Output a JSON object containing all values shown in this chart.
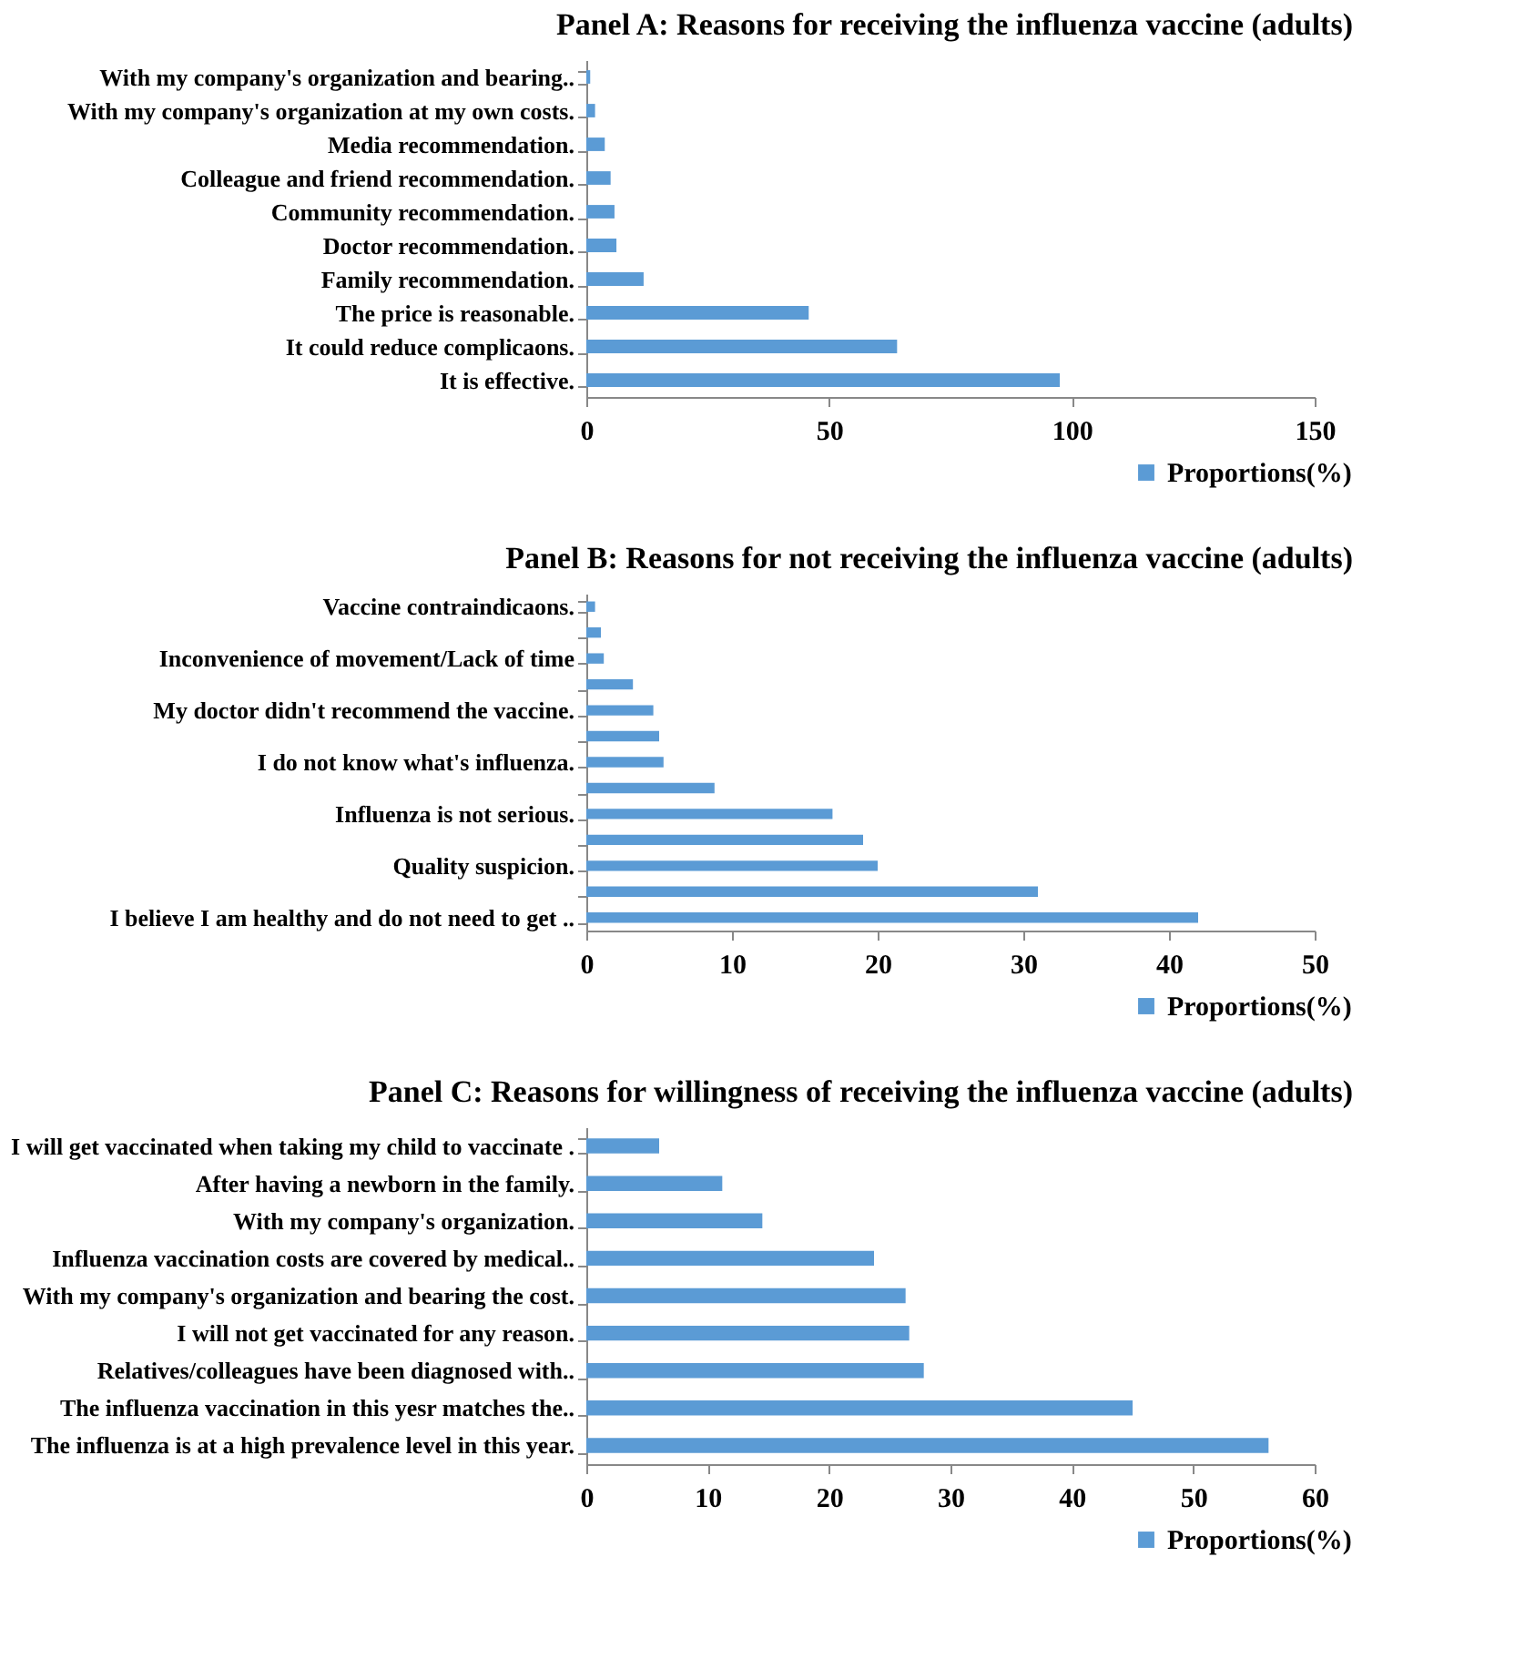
{
  "chart_data": [
    {
      "type": "bar",
      "orientation": "horizontal",
      "title": "Panel A: Reasons for receiving the influenza vaccine (adults)",
      "categories": [
        "With my company's organization and bearing..",
        "With my company's organization at my own costs.",
        "Media recommendation.",
        "Colleague and friend recommendation.",
        "Community recommendation.",
        "Doctor recommendation.",
        "Family recommendation.",
        "The price is reasonable.",
        "It could reduce complicaons.",
        "It is effective."
      ],
      "series": [
        {
          "name": "Proportions(%)",
          "color": "#5b9bd5",
          "values": [
            0.8,
            1.8,
            3.8,
            5,
            5.8,
            6.2,
            11.8,
            45.8,
            64,
            97.5
          ]
        }
      ],
      "xlim": [
        0,
        150
      ],
      "xticks": [
        0,
        50,
        100,
        150
      ],
      "grid": false,
      "legend": "bottom right"
    },
    {
      "type": "bar",
      "orientation": "horizontal",
      "title": "Panel B: Reasons for not receiving the influenza vaccine (adults)",
      "categories": [
        "Vaccine contraindicaons.",
        null,
        "Inconvenience of movement/Lack of time",
        null,
        "My doctor didn't recommend the vaccine.",
        null,
        "I do not know what's influenza.",
        null,
        "Influenza is not serious.",
        null,
        "Quality suspicion.",
        null,
        "I believe I am healthy and do not need to get .."
      ],
      "series": [
        {
          "name": "Proportions(%)",
          "color": "#5b9bd5",
          "values": [
            0.6,
            1,
            1.2,
            3.2,
            4.6,
            5,
            5.3,
            8.8,
            16.9,
            19,
            20,
            31,
            42
          ]
        }
      ],
      "xlim": [
        0,
        50
      ],
      "xticks": [
        0,
        10,
        20,
        30,
        40,
        50
      ],
      "grid": false,
      "legend": "bottom right"
    },
    {
      "type": "bar",
      "orientation": "horizontal",
      "title": "Panel C: Reasons for willingness of receiving the influenza vaccine (adults)",
      "categories": [
        "I will get vaccinated when taking my child to vaccinate .",
        "After having a newborn in the family.",
        "With my company's organization.",
        "Influenza vaccination costs are covered by medical..",
        "With my company's organization and bearing the cost.",
        "I will not get vaccinated for any reason.",
        "Relatives/colleagues have been diagnosed with..",
        "The influenza vaccination in this yesr matches the..",
        "The influenza is at a high prevalence level in this year."
      ],
      "series": [
        {
          "name": "Proportions(%)",
          "color": "#5b9bd5",
          "values": [
            6,
            11.2,
            14.5,
            23.7,
            26.3,
            26.6,
            27.8,
            45,
            56.2
          ]
        }
      ],
      "xlim": [
        0,
        60
      ],
      "xticks": [
        0,
        10,
        20,
        30,
        40,
        50,
        60
      ],
      "grid": false,
      "legend": "bottom right"
    }
  ]
}
